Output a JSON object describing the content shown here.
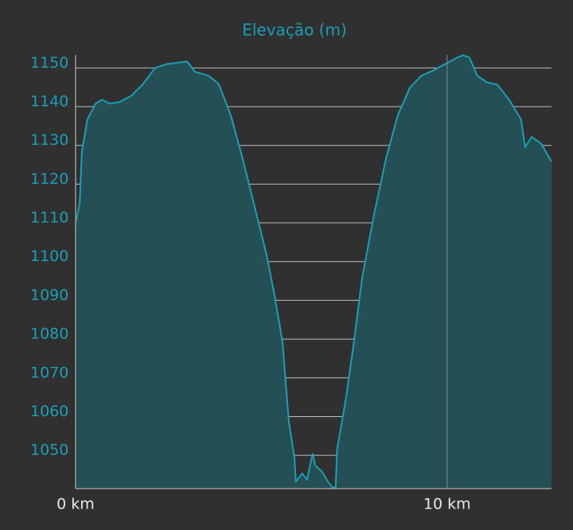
{
  "chart_data": {
    "type": "area",
    "title": "Elevação (m)",
    "x": [
      0,
      0.11,
      0.17,
      0.32,
      0.54,
      0.71,
      0.92,
      1.18,
      1.5,
      1.82,
      2.14,
      2.46,
      2.72,
      3.0,
      3.21,
      3.58,
      3.85,
      4.18,
      4.5,
      4.82,
      5.14,
      5.35,
      5.57,
      5.74,
      5.89,
      5.93,
      6.1,
      6.23,
      6.38,
      6.45,
      6.64,
      6.79,
      6.92,
      7.0,
      7.04,
      7.28,
      7.49,
      7.71,
      8.03,
      8.35,
      8.67,
      9.0,
      9.31,
      9.64,
      9.96,
      10.28,
      10.43,
      10.6,
      10.81,
      11.07,
      11.35,
      11.67,
      11.99,
      12.1,
      12.27,
      12.53,
      12.81
    ],
    "series": [
      {
        "name": "Elevação",
        "color": "#1a9fb5",
        "fill": "#244f55",
        "values": [
          1110,
          1115,
          1128.5,
          1136.7,
          1140.8,
          1141.8,
          1140.8,
          1141.2,
          1142.8,
          1145.9,
          1150,
          1151,
          1151.3,
          1151.7,
          1149,
          1148,
          1145.9,
          1137.7,
          1126.4,
          1114.1,
          1101.8,
          1091.5,
          1079.2,
          1058.6,
          1049.4,
          1043.2,
          1045.3,
          1043.7,
          1050.4,
          1047.4,
          1045.7,
          1043.2,
          1041.6,
          1041.8,
          1051.5,
          1064.8,
          1079.2,
          1095.6,
          1112,
          1126.4,
          1137.7,
          1144.9,
          1148,
          1149.4,
          1151.1,
          1152.7,
          1153.3,
          1152.7,
          1148,
          1146.3,
          1145.7,
          1141.8,
          1136.7,
          1129.5,
          1132.2,
          1130.5,
          1125.8
        ]
      }
    ],
    "xlim": [
      0,
      12.81
    ],
    "ylim": [
      1041.4,
      1155
    ],
    "xticks": [
      {
        "value": 0,
        "label": "0 km"
      },
      {
        "value": 10,
        "label": "10 km"
      }
    ],
    "yticks": [
      1050,
      1060,
      1070,
      1080,
      1090,
      1100,
      1110,
      1120,
      1130,
      1140,
      1150
    ],
    "grid": true
  }
}
